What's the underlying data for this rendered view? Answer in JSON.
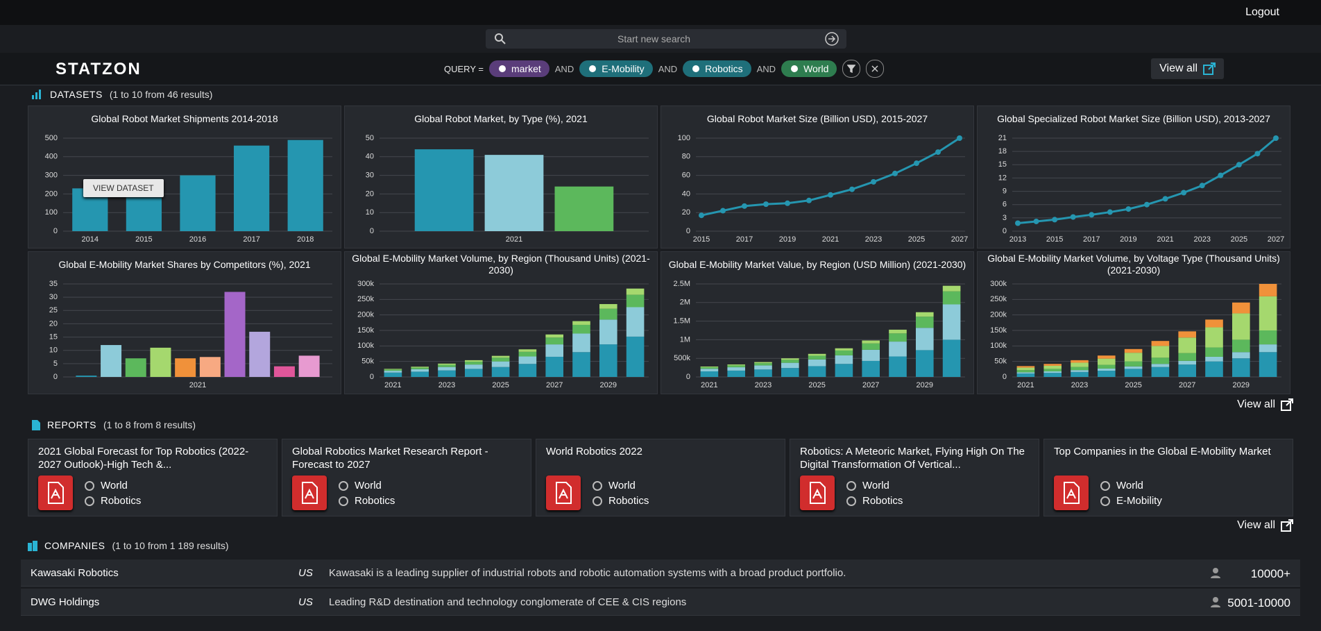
{
  "header": {
    "logout": "Logout",
    "search_placeholder": "Start new search",
    "logo": "STATZON",
    "query_label": "QUERY =",
    "query_terms": [
      "market",
      "E-Mobility",
      "Robotics",
      "World"
    ],
    "query_operators": [
      "AND",
      "AND",
      "AND"
    ],
    "view_all": "View all"
  },
  "datasets": {
    "title": "DATASETS",
    "count": "(1 to 10 from 46 results)",
    "overlay_button": "VIEW DATASET",
    "view_all": "View all"
  },
  "chart_data": [
    {
      "type": "bar",
      "title": "Global Robot Market Shipments 2014-2018",
      "categories": [
        "2014",
        "2015",
        "2016",
        "2017",
        "2018"
      ],
      "values": [
        230,
        270,
        300,
        460,
        490
      ],
      "color": "#2596b0",
      "ylim": [
        0,
        500
      ],
      "yticks": [
        0,
        100,
        200,
        300,
        400,
        500
      ],
      "grid": true
    },
    {
      "type": "bar",
      "title": "Global Robot Market, by Type (%), 2021",
      "categories": [
        "2021"
      ],
      "series": [
        {
          "color": "#2596b0",
          "values": [
            44
          ]
        },
        {
          "color": "#8dcbd9",
          "values": [
            41
          ]
        },
        {
          "color": "#5cb85c",
          "values": [
            24
          ]
        }
      ],
      "ylim": [
        0,
        50
      ],
      "yticks": [
        0,
        10,
        20,
        30,
        40,
        50
      ],
      "grid": true
    },
    {
      "type": "line",
      "title": "Global Robot Market Size (Billion USD), 2015-2027",
      "x": [
        2015,
        2016,
        2017,
        2018,
        2019,
        2020,
        2021,
        2022,
        2023,
        2024,
        2025,
        2026,
        2027
      ],
      "values": [
        17,
        22,
        27,
        29,
        30,
        33,
        39,
        45,
        53,
        62,
        73,
        85,
        100
      ],
      "color": "#2596b0",
      "xlim": [
        2015,
        2027
      ],
      "xticks": [
        2015,
        2017,
        2019,
        2021,
        2023,
        2025,
        2027
      ],
      "ylim": [
        0,
        100
      ],
      "yticks": [
        0,
        20,
        40,
        60,
        80,
        100
      ],
      "grid": true
    },
    {
      "type": "line",
      "title": "Global Specialized Robot Market Size (Billion USD), 2013-2027",
      "x": [
        2013,
        2014,
        2015,
        2016,
        2017,
        2018,
        2019,
        2020,
        2021,
        2022,
        2023,
        2024,
        2025,
        2026,
        2027
      ],
      "values": [
        1.8,
        2.2,
        2.6,
        3.2,
        3.7,
        4.3,
        5,
        6,
        7.3,
        8.7,
        10.3,
        12.6,
        15,
        17.5,
        21
      ],
      "color": "#2596b0",
      "xlim": [
        2013,
        2027
      ],
      "xticks": [
        2013,
        2015,
        2017,
        2019,
        2021,
        2023,
        2025,
        2027
      ],
      "ylim": [
        0,
        21
      ],
      "yticks": [
        0,
        3,
        6,
        9,
        12,
        15,
        18,
        21
      ],
      "grid": true
    },
    {
      "type": "bar",
      "title": "Global E-Mobility Market Shares by Competitors (%), 2021",
      "categories": [
        "2021"
      ],
      "series": [
        {
          "color": "#2596b0",
          "values": [
            0.5
          ]
        },
        {
          "color": "#8dcbd9",
          "values": [
            12
          ]
        },
        {
          "color": "#5cb85c",
          "values": [
            7
          ]
        },
        {
          "color": "#a5d86e",
          "values": [
            11
          ]
        },
        {
          "color": "#f0913a",
          "values": [
            7
          ]
        },
        {
          "color": "#f7a982",
          "values": [
            7.5
          ]
        },
        {
          "color": "#a466c8",
          "values": [
            32
          ]
        },
        {
          "color": "#b3a6dd",
          "values": [
            17
          ]
        },
        {
          "color": "#e0569a",
          "values": [
            4
          ]
        },
        {
          "color": "#e79ad0",
          "values": [
            8
          ]
        }
      ],
      "ylim": [
        0,
        35
      ],
      "yticks": [
        0,
        5,
        10,
        15,
        20,
        25,
        30,
        35
      ],
      "grid": true
    },
    {
      "type": "bar",
      "stacked": true,
      "title": "Global E-Mobility Market Volume, by Region (Thousand Units) (2021-2030)",
      "categories": [
        "2021",
        null,
        "2023",
        null,
        "2025",
        null,
        "2027",
        null,
        "2029",
        null
      ],
      "series": [
        {
          "color": "#2596b0",
          "values": [
            14000,
            17000,
            21000,
            26000,
            32000,
            42000,
            65000,
            80000,
            105000,
            130000
          ]
        },
        {
          "color": "#8dcbd9",
          "values": [
            6000,
            8000,
            11000,
            14000,
            18000,
            24000,
            40000,
            60000,
            80000,
            95000
          ]
        },
        {
          "color": "#5cb85c",
          "values": [
            4000,
            5000,
            7000,
            9000,
            12000,
            15000,
            22000,
            28000,
            35000,
            40000
          ]
        },
        {
          "color": "#a5d86e",
          "values": [
            2000,
            3000,
            4000,
            5000,
            6000,
            8000,
            10000,
            12000,
            15000,
            20000
          ]
        }
      ],
      "ylim": [
        0,
        300000
      ],
      "yticks": [
        0,
        {
          "value": 50000,
          "label": "50k"
        },
        {
          "value": 100000,
          "label": "100k"
        },
        {
          "value": 150000,
          "label": "150k"
        },
        {
          "value": 200000,
          "label": "200k"
        },
        {
          "value": 250000,
          "label": "250k"
        },
        {
          "value": 300000,
          "label": "300k"
        }
      ],
      "grid": true
    },
    {
      "type": "bar",
      "stacked": true,
      "title": "Global E-Mobility Market Value, by Region (USD Million) (2021-2030)",
      "categories": [
        "2021",
        null,
        "2023",
        null,
        "2025",
        null,
        "2027",
        null,
        "2029",
        null
      ],
      "series": [
        {
          "color": "#2596b0",
          "values": [
            150000,
            170000,
            200000,
            240000,
            290000,
            350000,
            430000,
            550000,
            720000,
            1000000
          ]
        },
        {
          "color": "#8dcbd9",
          "values": [
            70000,
            90000,
            110000,
            140000,
            180000,
            230000,
            300000,
            400000,
            600000,
            950000
          ]
        },
        {
          "color": "#5cb85c",
          "values": [
            40000,
            50000,
            60000,
            80000,
            100000,
            130000,
            170000,
            220000,
            300000,
            350000
          ]
        },
        {
          "color": "#a5d86e",
          "values": [
            20000,
            25000,
            30000,
            40000,
            50000,
            60000,
            80000,
            100000,
            120000,
            150000
          ]
        }
      ],
      "ylim": [
        0,
        2500000
      ],
      "yticks": [
        0,
        {
          "value": 500000,
          "label": "500k"
        },
        {
          "value": 1000000,
          "label": "1M"
        },
        {
          "value": 1500000,
          "label": "1.5M"
        },
        {
          "value": 2000000,
          "label": "2M"
        },
        {
          "value": 2500000,
          "label": "2.5M"
        }
      ],
      "grid": true
    },
    {
      "type": "bar",
      "stacked": true,
      "title": "Global E-Mobility Market Volume, by Voltage Type (Thousand Units) (2021-2030)",
      "categories": [
        "2021",
        null,
        "2023",
        null,
        "2025",
        null,
        "2027",
        null,
        "2029",
        null
      ],
      "series": [
        {
          "color": "#2596b0",
          "values": [
            11000,
            13000,
            16000,
            20000,
            26000,
            32000,
            40000,
            50000,
            60000,
            80000
          ]
        },
        {
          "color": "#8dcbd9",
          "values": [
            4000,
            5000,
            6000,
            7000,
            8000,
            10000,
            12000,
            15000,
            20000,
            25000
          ]
        },
        {
          "color": "#5cb85c",
          "values": [
            7000,
            8000,
            10000,
            12000,
            16000,
            20000,
            25000,
            30000,
            40000,
            45000
          ]
        },
        {
          "color": "#a5d86e",
          "values": [
            8000,
            10000,
            14000,
            20000,
            28000,
            38000,
            50000,
            65000,
            85000,
            110000
          ]
        },
        {
          "color": "#f0913a",
          "values": [
            5000,
            6000,
            8000,
            10000,
            12000,
            16000,
            20000,
            25000,
            35000,
            40000
          ]
        }
      ],
      "ylim": [
        0,
        300000
      ],
      "yticks": [
        0,
        {
          "value": 50000,
          "label": "50k"
        },
        {
          "value": 100000,
          "label": "100k"
        },
        {
          "value": 150000,
          "label": "150k"
        },
        {
          "value": 200000,
          "label": "200k"
        },
        {
          "value": 250000,
          "label": "250k"
        },
        {
          "value": 300000,
          "label": "300k"
        }
      ],
      "grid": true
    }
  ],
  "reports": {
    "title": "REPORTS",
    "count": "(1 to 8 from 8 results)",
    "view_all": "View all",
    "items": [
      {
        "title": "2021 Global Forecast for Top Robotics (2022-2027 Outlook)-High Tech &...",
        "region": "World",
        "topic": "Robotics"
      },
      {
        "title": "Global Robotics Market Research Report - Forecast to 2027",
        "region": "World",
        "topic": "Robotics"
      },
      {
        "title": "World Robotics 2022",
        "region": "World",
        "topic": "Robotics"
      },
      {
        "title": "Robotics: A Meteoric Market, Flying High On The Digital Transformation Of Vertical...",
        "region": "World",
        "topic": "Robotics"
      },
      {
        "title": "Top Companies in the Global E-Mobility Market",
        "region": "World",
        "topic": "E-Mobility"
      }
    ]
  },
  "companies": {
    "title": "COMPANIES",
    "count": "(1 to 10 from 1 189 results)",
    "rows": [
      {
        "name": "Kawasaki Robotics",
        "country": "US",
        "description": "Kawasaki is a leading supplier of industrial robots and robotic automation systems with a broad product portfolio.",
        "size": "10000+"
      },
      {
        "name": "DWG Holdings",
        "country": "US",
        "description": "Leading R&D destination and technology conglomerate of CEE & CIS regions",
        "size": "5001-10000"
      }
    ]
  }
}
